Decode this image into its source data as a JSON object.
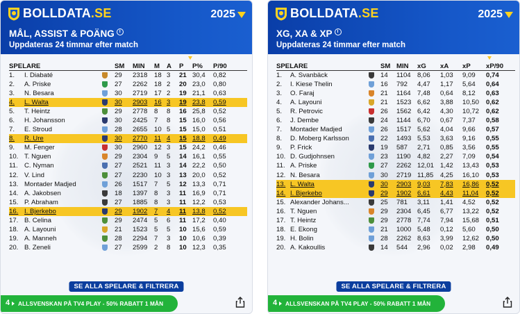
{
  "panels": [
    {
      "brand_main": "BOLLDATA",
      "brand_suffix": ".SE",
      "year": "2025",
      "title": "MÅL, ASSIST & POÄNG",
      "subtitle": "Uppdateras 24 timmar efter match",
      "columns": [
        "SPELARE",
        "",
        "SM",
        "MIN",
        "M",
        "A",
        "P",
        "P%",
        "P/90"
      ],
      "rows": [
        {
          "rank": "1.",
          "name": "I. Diabaté",
          "team": "#c7892a",
          "sm": "29",
          "min": "2318",
          "m": "18",
          "a": "3",
          "p": "21",
          "pp": "30,4",
          "p90": "0,82"
        },
        {
          "rank": "2.",
          "name": "A. Priske",
          "team": "#2f9a4a",
          "sm": "27",
          "min": "2262",
          "m": "18",
          "a": "2",
          "p": "20",
          "pp": "23,0",
          "p90": "0,80"
        },
        {
          "rank": "3.",
          "name": "N. Besara",
          "team": "#6fa0d8",
          "sm": "30",
          "min": "2719",
          "m": "17",
          "a": "2",
          "p": "19",
          "pp": "21,1",
          "p90": "0,63"
        },
        {
          "rank": "4.",
          "name": "L. Walta",
          "team": "#2a3a6e",
          "sm": "30",
          "min": "2903",
          "m": "16",
          "a": "3",
          "p": "19",
          "pp": "23,8",
          "p90": "0,59",
          "hl": true
        },
        {
          "rank": "5.",
          "name": "T. Heintz",
          "team": "#4d8f3a",
          "sm": "29",
          "min": "2778",
          "m": "8",
          "a": "8",
          "p": "16",
          "pp": "25,8",
          "p90": "0,52"
        },
        {
          "rank": "6.",
          "name": "H. Johansson",
          "team": "#2a3a6e",
          "sm": "30",
          "min": "2425",
          "m": "7",
          "a": "8",
          "p": "15",
          "pp": "16,0",
          "p90": "0,56"
        },
        {
          "rank": "7.",
          "name": "E. Stroud",
          "team": "#6fa0d8",
          "sm": "28",
          "min": "2655",
          "m": "10",
          "a": "5",
          "p": "15",
          "pp": "15,0",
          "p90": "0,51"
        },
        {
          "rank": "8.",
          "name": "R. Ure",
          "team": "#2a3a6e",
          "sm": "30",
          "min": "2770",
          "m": "11",
          "a": "4",
          "p": "15",
          "pp": "18,8",
          "p90": "0,49",
          "hl": true
        },
        {
          "rank": "9.",
          "name": "M. Fenger",
          "team": "#c93030",
          "sm": "30",
          "min": "2960",
          "m": "12",
          "a": "3",
          "p": "15",
          "pp": "24,2",
          "p90": "0,46"
        },
        {
          "rank": "10.",
          "name": "T. Nguen",
          "team": "#d9852a",
          "sm": "29",
          "min": "2304",
          "m": "9",
          "a": "5",
          "p": "14",
          "pp": "16,1",
          "p90": "0,55"
        },
        {
          "rank": "11.",
          "name": "C. Nyman",
          "team": "#4a6fb0",
          "sm": "27",
          "min": "2521",
          "m": "11",
          "a": "3",
          "p": "14",
          "pp": "22,2",
          "p90": "0,50"
        },
        {
          "rank": "12.",
          "name": "V. Lind",
          "team": "#4d8f3a",
          "sm": "27",
          "min": "2230",
          "m": "10",
          "a": "3",
          "p": "13",
          "pp": "20,0",
          "p90": "0,52"
        },
        {
          "rank": "13.",
          "name": "Montader Madjed",
          "team": "#6fa0d8",
          "sm": "26",
          "min": "1517",
          "m": "7",
          "a": "5",
          "p": "12",
          "pp": "13,3",
          "p90": "0,71"
        },
        {
          "rank": "14.",
          "name": "A. Jakobsen",
          "team": "#3a3a3a",
          "sm": "18",
          "min": "1397",
          "m": "8",
          "a": "3",
          "p": "11",
          "pp": "16,9",
          "p90": "0,71"
        },
        {
          "rank": "15.",
          "name": "P. Abraham",
          "team": "#3a3a3a",
          "sm": "27",
          "min": "1885",
          "m": "8",
          "a": "3",
          "p": "11",
          "pp": "12,2",
          "p90": "0,53"
        },
        {
          "rank": "16.",
          "name": "I. Bjerkebo",
          "team": "#2a3a6e",
          "sm": "29",
          "min": "1902",
          "m": "7",
          "a": "4",
          "p": "11",
          "pp": "13,8",
          "p90": "0,52",
          "hl": true
        },
        {
          "rank": "17.",
          "name": "B. Celina",
          "team": "#4d8f3a",
          "sm": "29",
          "min": "2474",
          "m": "5",
          "a": "6",
          "p": "11",
          "pp": "17,2",
          "p90": "0,40"
        },
        {
          "rank": "18.",
          "name": "A. Layouni",
          "team": "#d9a72a",
          "sm": "21",
          "min": "1523",
          "m": "5",
          "a": "5",
          "p": "10",
          "pp": "15,6",
          "p90": "0,59"
        },
        {
          "rank": "19.",
          "name": "A. Manneh",
          "team": "#4d8f3a",
          "sm": "28",
          "min": "2294",
          "m": "7",
          "a": "3",
          "p": "10",
          "pp": "10,6",
          "p90": "0,39"
        },
        {
          "rank": "20.",
          "name": "B. Zeneli",
          "team": "#6fa0d8",
          "sm": "27",
          "min": "2599",
          "m": "2",
          "a": "8",
          "p": "10",
          "pp": "12,3",
          "p90": "0,35"
        }
      ],
      "button": "SE ALLA SPELARE & FILTRERA",
      "promo": "ALLSVENSKAN PÅ TV4 PLAY - 50% RABATT 1 MÅN",
      "promo_badge": "4"
    },
    {
      "brand_main": "BOLLDATA",
      "brand_suffix": ".SE",
      "year": "2025",
      "title": "XG, XA & XP",
      "subtitle": "Uppdateras 24 timmar efter match",
      "columns": [
        "SPELARE",
        "",
        "SM",
        "MIN",
        "xG",
        "xA",
        "xP",
        "xP/90"
      ],
      "rows": [
        {
          "rank": "1.",
          "name": "A. Svanbäck",
          "team": "#3a3a3a",
          "sm": "14",
          "min": "1104",
          "xg": "8,06",
          "xa": "1,03",
          "xp": "9,09",
          "xp90": "0,74"
        },
        {
          "rank": "2.",
          "name": "I. Kiese Thelin",
          "team": "#6fa0d8",
          "sm": "16",
          "min": "792",
          "xg": "4,47",
          "xa": "1,17",
          "xp": "5,64",
          "xp90": "0,64"
        },
        {
          "rank": "3.",
          "name": "O. Faraj",
          "team": "#d9852a",
          "sm": "21",
          "min": "1164",
          "xg": "7,48",
          "xa": "0,64",
          "xp": "8,12",
          "xp90": "0,63"
        },
        {
          "rank": "4.",
          "name": "A. Layouni",
          "team": "#d9a72a",
          "sm": "21",
          "min": "1523",
          "xg": "6,62",
          "xa": "3,88",
          "xp": "10,50",
          "xp90": "0,62"
        },
        {
          "rank": "5.",
          "name": "R. Petrovic",
          "team": "#c93030",
          "sm": "26",
          "min": "1562",
          "xg": "6,42",
          "xa": "4,30",
          "xp": "10,72",
          "xp90": "0,62"
        },
        {
          "rank": "6.",
          "name": "J. Dembe",
          "team": "#3a3a3a",
          "sm": "24",
          "min": "1144",
          "xg": "6,70",
          "xa": "0,67",
          "xp": "7,37",
          "xp90": "0,58"
        },
        {
          "rank": "7.",
          "name": "Montader Madjed",
          "team": "#6fa0d8",
          "sm": "26",
          "min": "1517",
          "xg": "5,62",
          "xa": "4,04",
          "xp": "9,66",
          "xp90": "0,57"
        },
        {
          "rank": "8.",
          "name": "D. Moberg Karlsson",
          "team": "#4a6fb0",
          "sm": "22",
          "min": "1493",
          "xg": "5,53",
          "xa": "3,63",
          "xp": "9,16",
          "xp90": "0,55"
        },
        {
          "rank": "9.",
          "name": "P. Frick",
          "team": "#2a3a6e",
          "sm": "19",
          "min": "587",
          "xg": "2,71",
          "xa": "0,85",
          "xp": "3,56",
          "xp90": "0,55"
        },
        {
          "rank": "10.",
          "name": "D. Gudjohnsen",
          "team": "#6fa0d8",
          "sm": "23",
          "min": "1190",
          "xg": "4,82",
          "xa": "2,27",
          "xp": "7,09",
          "xp90": "0,54"
        },
        {
          "rank": "11.",
          "name": "A. Priske",
          "team": "#2f9a4a",
          "sm": "27",
          "min": "2262",
          "xg": "12,01",
          "xa": "1,42",
          "xp": "13,43",
          "xp90": "0,53"
        },
        {
          "rank": "12.",
          "name": "N. Besara",
          "team": "#6fa0d8",
          "sm": "30",
          "min": "2719",
          "xg": "11,85",
          "xa": "4,25",
          "xp": "16,10",
          "xp90": "0,53"
        },
        {
          "rank": "13.",
          "name": "L. Walta",
          "team": "#2a3a6e",
          "sm": "30",
          "min": "2903",
          "xg": "9,03",
          "xa": "7,83",
          "xp": "16,86",
          "xp90": "0,52",
          "hl": true
        },
        {
          "rank": "14.",
          "name": "I. Bjerkebo",
          "team": "#2a3a6e",
          "sm": "29",
          "min": "1902",
          "xg": "6,61",
          "xa": "4,43",
          "xp": "11,04",
          "xp90": "0,52",
          "hl": true
        },
        {
          "rank": "15.",
          "name": "Alexander Johans...",
          "team": "#3a3a3a",
          "sm": "25",
          "min": "781",
          "xg": "3,11",
          "xa": "1,41",
          "xp": "4,52",
          "xp90": "0,52"
        },
        {
          "rank": "16.",
          "name": "T. Nguen",
          "team": "#d9852a",
          "sm": "29",
          "min": "2304",
          "xg": "6,45",
          "xa": "6,77",
          "xp": "13,22",
          "xp90": "0,52"
        },
        {
          "rank": "17.",
          "name": "T. Heintz",
          "team": "#4d8f3a",
          "sm": "29",
          "min": "2778",
          "xg": "7,74",
          "xa": "7,94",
          "xp": "15,68",
          "xp90": "0,51"
        },
        {
          "rank": "18.",
          "name": "E. Ekong",
          "team": "#6fa0d8",
          "sm": "21",
          "min": "1000",
          "xg": "5,48",
          "xa": "0,12",
          "xp": "5,60",
          "xp90": "0,50"
        },
        {
          "rank": "19.",
          "name": "H. Bolin",
          "team": "#6fa0d8",
          "sm": "28",
          "min": "2262",
          "xg": "8,63",
          "xa": "3,99",
          "xp": "12,62",
          "xp90": "0,50"
        },
        {
          "rank": "20.",
          "name": "A. Kakoullis",
          "team": "#3a3a3a",
          "sm": "14",
          "min": "544",
          "xg": "2,96",
          "xa": "0,02",
          "xp": "2,98",
          "xp90": "0,49"
        }
      ],
      "button": "SE ALLA SPELARE & FILTRERA",
      "promo": "ALLSVENSKAN PÅ TV4 PLAY - 50% RABATT 1 MÅN",
      "promo_badge": "4"
    }
  ],
  "colors": {
    "header_blue": "#1557c8",
    "brand_yellow": "#ffd21f",
    "highlight": "#f7c624",
    "promo_green": "#22b33a",
    "button_navy": "#0b3e9e"
  }
}
